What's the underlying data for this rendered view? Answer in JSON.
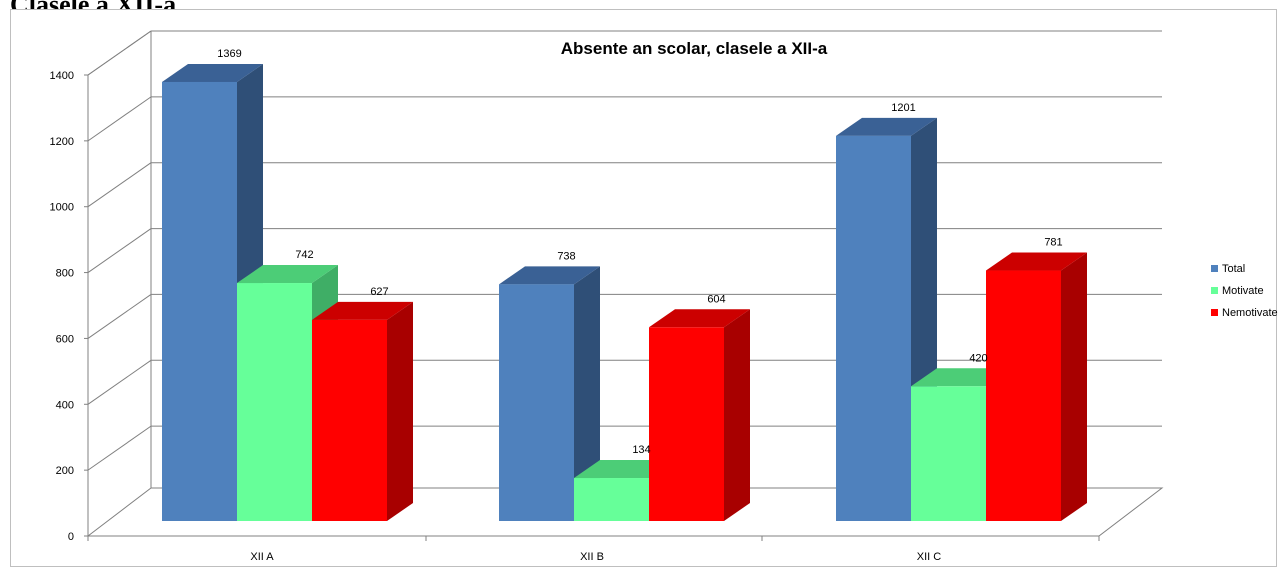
{
  "document": {
    "heading": "Clasele a XII-a"
  },
  "chart_data": {
    "type": "bar",
    "title": "Absente an scolar, clasele a XII-a",
    "categories": [
      "XII A",
      "XII B",
      "XII C"
    ],
    "series": [
      {
        "name": "Total",
        "values": [
          1369,
          738,
          1201
        ]
      },
      {
        "name": "Motivate",
        "values": [
          742,
          134,
          420
        ]
      },
      {
        "name": "Nemotivate",
        "values": [
          627,
          604,
          781
        ]
      }
    ],
    "ylim": [
      0,
      1400
    ],
    "yticks": [
      0,
      200,
      400,
      600,
      800,
      1000,
      1200,
      1400
    ],
    "grid": true,
    "three_d": true,
    "legend_position": "right",
    "colors": {
      "Total": {
        "front": "#4f81bd",
        "side": "#2f4f77",
        "top": "#3a6195"
      },
      "Motivate": {
        "front": "#66ff99",
        "side": "#3fae66",
        "top": "#4ccd77"
      },
      "Nemotivate": {
        "front": "#ff0000",
        "side": "#a80000",
        "top": "#cc0000"
      }
    }
  }
}
